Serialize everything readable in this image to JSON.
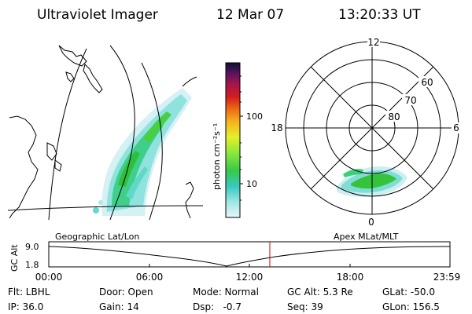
{
  "header": {
    "instrument": "Ultraviolet Imager",
    "date": "12 Mar 07",
    "time": "13:20:33 UT"
  },
  "colorbar": {
    "unit_label": "photon cm⁻²s⁻¹",
    "ticks": [
      "100",
      "10"
    ]
  },
  "polar_plot": {
    "mlt_labels": [
      "12",
      "18",
      "6",
      "0"
    ],
    "lat_labels": [
      "60",
      "70",
      "80"
    ]
  },
  "map_labels": {
    "left": "Geographic Lat/Lon",
    "right": "Apex MLat/MLT"
  },
  "altitude_plot": {
    "ylabel": "GC Alt",
    "ytick_top": "9.0",
    "ytick_bottom": "1.8",
    "xticks": [
      "00:00",
      "06:00",
      "12:00",
      "18:00",
      "23:59"
    ]
  },
  "status": {
    "filter": "Flt: LBHL",
    "ip": "IP: 36.0",
    "door": "Door: Open",
    "gain": "Gain: 14",
    "mode": "Mode: Normal",
    "dsp": "Dsp:   -0.7",
    "gc_alt": "GC Alt: 5.3 Re",
    "seq": "Seq: 39",
    "glat": "GLat: -50.0",
    "glon": "GLon: 156.5"
  },
  "colors": {
    "current_time_marker": "#cc0000",
    "aurora_low": "#7fe0d0",
    "aurora_high": "#34c24a"
  }
}
